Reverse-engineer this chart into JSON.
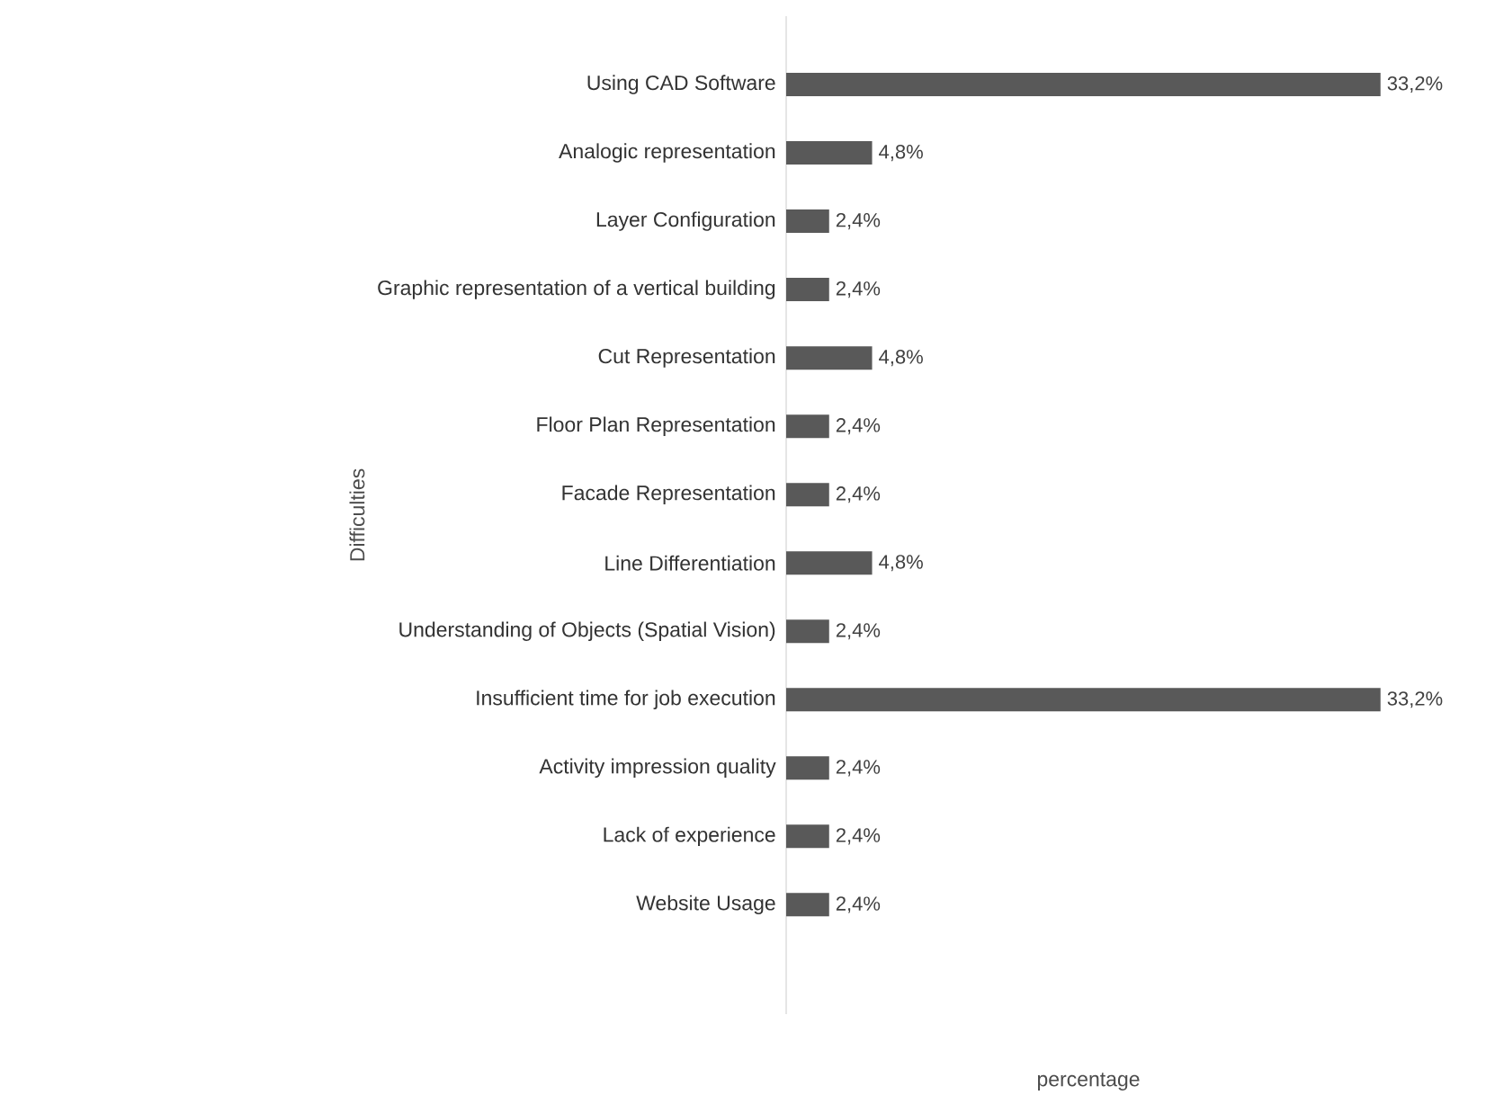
{
  "chart_data": {
    "type": "bar",
    "orientation": "horizontal",
    "xlabel": "percentage",
    "ylabel": "Difficulties",
    "color": "#595959",
    "categories": [
      "Using CAD Software",
      "Analogic representation",
      "Layer Configuration",
      "Graphic representation of a vertical building",
      "Cut Representation",
      "Floor Plan Representation",
      "Facade Representation",
      "Line Differentiation",
      "Understanding of Objects (Spatial Vision)",
      "Insufficient time for job execution",
      "Activity impression quality",
      "Lack of experience",
      "Website Usage"
    ],
    "values": [
      33.2,
      4.8,
      2.4,
      2.4,
      4.8,
      2.4,
      2.4,
      4.8,
      2.4,
      33.2,
      2.4,
      2.4,
      2.4
    ],
    "value_labels": [
      "33,2%",
      "4,8%",
      "2,4%",
      "2,4%",
      "4,8%",
      "2,4%",
      "2,4%",
      "4,8%",
      "2,4%",
      "33,2%",
      "2,4%",
      "2,4%",
      "2,4%"
    ]
  }
}
